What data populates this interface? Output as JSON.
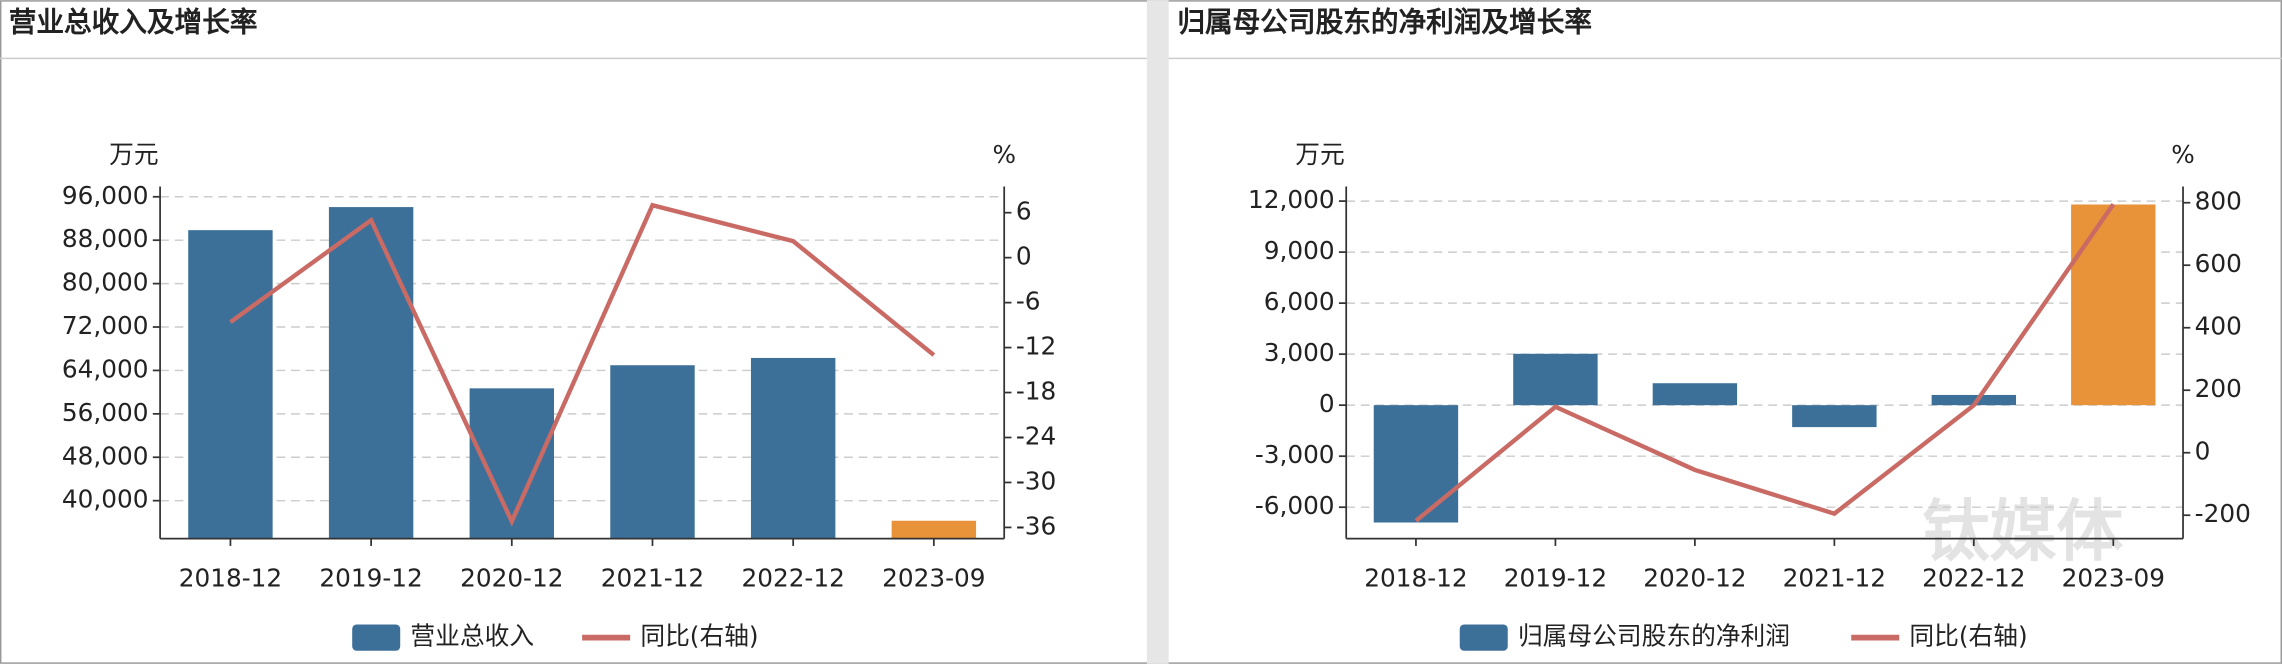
{
  "chart_data": [
    {
      "type": "bar-line",
      "title": "营业总收入及增长率",
      "y_label": "万元",
      "y2_label": "%",
      "categories": [
        "2018-12",
        "2019-12",
        "2020-12",
        "2021-12",
        "2022-12",
        "2023-09"
      ],
      "series": [
        {
          "name": "营业总收入",
          "type": "bar",
          "color": "#3d7099",
          "colors": [
            "#3d7099",
            "#3d7099",
            "#3d7099",
            "#3d7099",
            "#3d7099",
            "#e8923a"
          ],
          "values": [
            89850,
            94100,
            60700,
            64960,
            66300,
            36300
          ]
        },
        {
          "name": "同比(右轴)",
          "type": "line",
          "axis": "y2",
          "color": "#c96a64",
          "values": [
            -8.6,
            5.0,
            -35.2,
            7.0,
            2.2,
            -13.0
          ]
        }
      ],
      "ylim": [
        33000,
        97900
      ],
      "yticks": [
        {
          "value": 40000,
          "label": "40,000"
        },
        {
          "value": 48000,
          "label": "48,000"
        },
        {
          "value": 56000,
          "label": "56,000"
        },
        {
          "value": 64000,
          "label": "64,000"
        },
        {
          "value": 72000,
          "label": "72,000"
        },
        {
          "value": 80000,
          "label": "80,000"
        },
        {
          "value": 88000,
          "label": "88,000"
        },
        {
          "value": 96000,
          "label": "96,000"
        }
      ],
      "y2lim": [
        -37.5,
        9.5
      ],
      "y2ticks": [
        -36,
        -30,
        -24,
        -18,
        -12,
        -6,
        0,
        6
      ],
      "grid": true
    },
    {
      "type": "bar-line",
      "title": "归属母公司股东的净利润及增长率",
      "y_label": "万元",
      "y2_label": "%",
      "categories": [
        "2018-12",
        "2019-12",
        "2020-12",
        "2021-12",
        "2022-12",
        "2023-09"
      ],
      "series": [
        {
          "name": "归属母公司股东的净利润",
          "type": "bar",
          "color": "#3d7099",
          "colors": [
            "#3d7099",
            "#3d7099",
            "#3d7099",
            "#3d7099",
            "#3d7099",
            "#e8923a"
          ],
          "values": [
            -6900,
            3020,
            1290,
            -1290,
            600,
            11800
          ]
        },
        {
          "name": "同比(右轴)",
          "type": "line",
          "axis": "y2",
          "color": "#c96a64",
          "values": [
            -218,
            147,
            -55,
            -195,
            152,
            795
          ]
        }
      ],
      "ylim": [
        -7850,
        12860
      ],
      "yticks": [
        {
          "value": -6000,
          "label": "-6,000"
        },
        {
          "value": -3000,
          "label": "-3,000"
        },
        0,
        {
          "value": 3000,
          "label": "3,000"
        },
        {
          "value": 6000,
          "label": "6,000"
        },
        {
          "value": 9000,
          "label": "9,000"
        },
        {
          "value": 12000,
          "label": "12,000"
        }
      ],
      "y2lim": [
        -275,
        852
      ],
      "y2ticks": [
        -200,
        0,
        200,
        400,
        600,
        800
      ],
      "grid": true
    }
  ],
  "watermark": "钛媒体"
}
